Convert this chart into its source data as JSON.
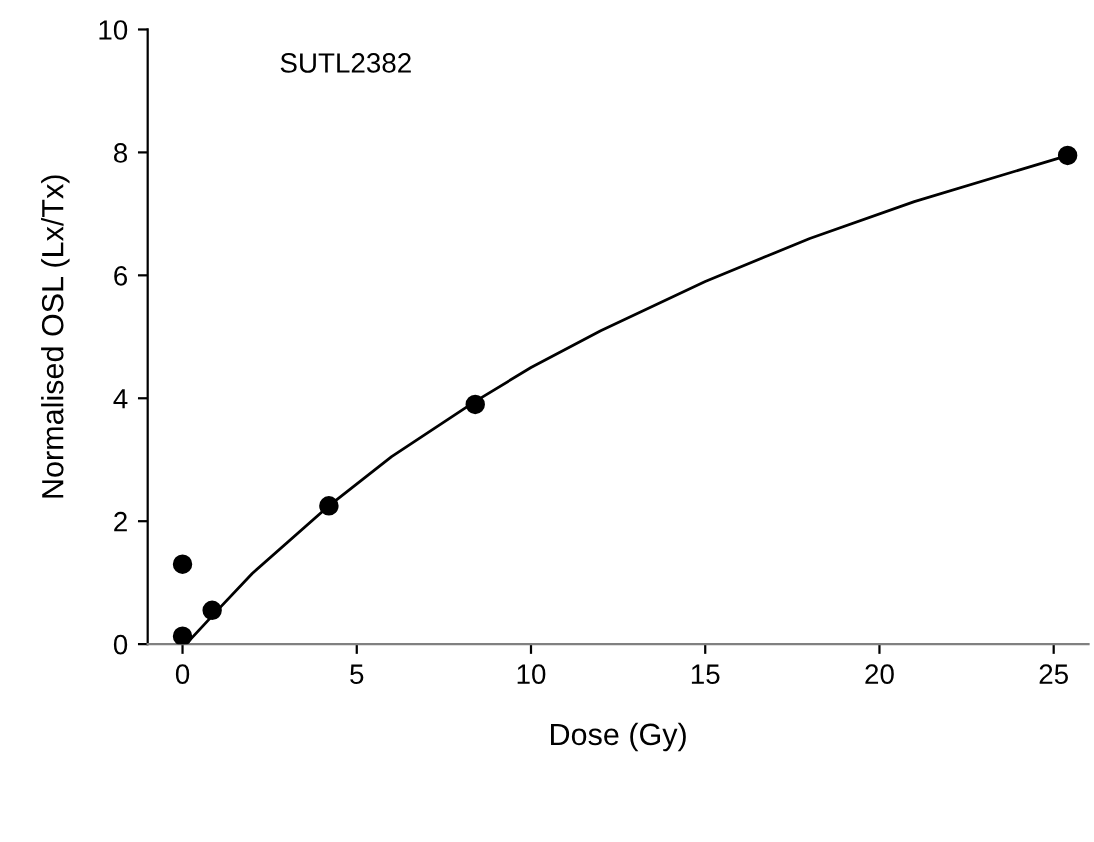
{
  "chart_data": {
    "type": "scatter",
    "xlabel": "Dose (Gy)",
    "ylabel": "Normalised OSL (Lx/Tx)",
    "annotations": [
      "SUTL2382"
    ],
    "xlim": [
      -1,
      26
    ],
    "ylim": [
      0,
      10
    ],
    "xticks": [
      0,
      5,
      10,
      15,
      20,
      25
    ],
    "yticks": [
      0,
      2,
      4,
      6,
      8,
      10
    ],
    "grid": false,
    "legend": false,
    "series": [
      {
        "color": "#000000",
        "marker": "circle",
        "x": [
          0,
          0,
          0.85,
          4.2,
          8.4,
          25.4
        ],
        "values": [
          0.13,
          1.3,
          0.55,
          2.25,
          3.9,
          7.95
        ]
      },
      {
        "type": "line",
        "color": "#000000",
        "marker": "none",
        "line_style": "solid",
        "x": [
          0.1,
          1,
          2,
          4.2,
          6,
          8.4,
          10,
          12,
          15,
          18,
          21,
          25.4
        ],
        "values": [
          0,
          0.55,
          1.15,
          2.25,
          3.05,
          3.95,
          4.5,
          5.1,
          5.9,
          6.6,
          7.2,
          7.95
        ]
      }
    ]
  }
}
